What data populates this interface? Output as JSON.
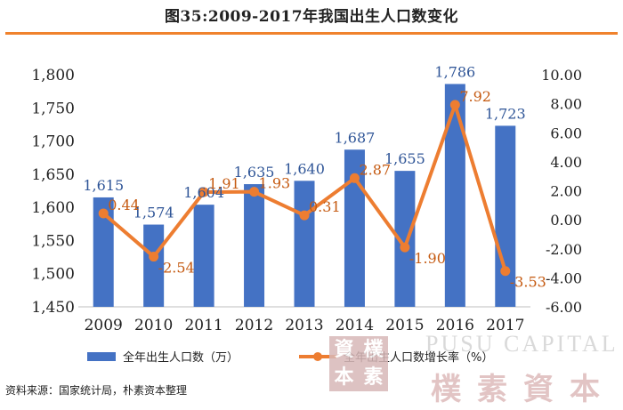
{
  "header": {
    "title": "图35:2009-2017年我国出生人口数变化"
  },
  "footer": {
    "source": "资料来源：国家统计局，朴素资本整理"
  },
  "watermark": {
    "english": "PUSU CAPITAL",
    "chinese": "樸素資本",
    "seal_chars": [
      "資",
      "樸",
      "本",
      "素"
    ]
  },
  "colors": {
    "bar": "#4472c4",
    "line": "#ed7d31",
    "bar_label": "#2f5597",
    "line_label": "#c55a11",
    "accent_rule": "#f0822c"
  },
  "chart_data": {
    "type": "bar",
    "categories": [
      "2009",
      "2010",
      "2011",
      "2012",
      "2013",
      "2014",
      "2015",
      "2016",
      "2017"
    ],
    "series": [
      {
        "name": "全年出生人口数（万）",
        "type": "bar",
        "axis": "left",
        "values": [
          1615,
          1574,
          1604,
          1635,
          1640,
          1687,
          1655,
          1786,
          1723
        ],
        "labels": [
          "1,615",
          "1,574",
          "1,604",
          "1,635",
          "1,640",
          "1,687",
          "1,655",
          "1,786",
          "1,723"
        ]
      },
      {
        "name": "全年出生人口数增长率（%）",
        "type": "line",
        "axis": "right",
        "values": [
          0.44,
          -2.54,
          1.91,
          1.93,
          0.31,
          2.87,
          -1.9,
          7.92,
          -3.53
        ],
        "labels": [
          "0.44",
          "-2.54",
          "1.91",
          "1.93",
          "0.31",
          "2.87",
          "-1.90",
          "7.92",
          "-3.53"
        ]
      }
    ],
    "y_left": {
      "range": [
        1450,
        1800
      ],
      "ticks": [
        1450,
        1500,
        1550,
        1600,
        1650,
        1700,
        1750,
        1800
      ],
      "tick_labels": [
        "1,450",
        "1,500",
        "1,550",
        "1,600",
        "1,650",
        "1,700",
        "1,750",
        "1,800"
      ]
    },
    "y_right": {
      "range": [
        -6,
        10
      ],
      "ticks": [
        -6,
        -4,
        -2,
        0,
        2,
        4,
        6,
        8,
        10
      ],
      "tick_labels": [
        "-6.00",
        "-4.00",
        "-2.00",
        "0.00",
        "2.00",
        "4.00",
        "6.00",
        "8.00",
        "10.00"
      ]
    },
    "grid": false,
    "legend_position": "bottom"
  }
}
